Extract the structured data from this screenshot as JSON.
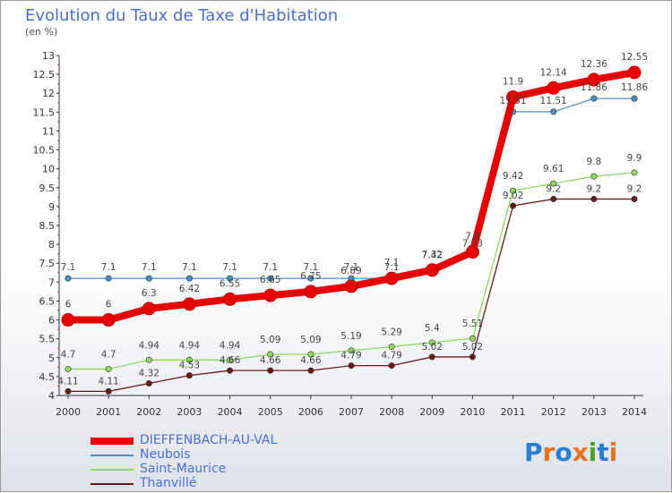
{
  "chart_data": {
    "type": "line",
    "title": "Evolution du Taux de Taxe d'Habitation",
    "unit": "(en %)",
    "x": [
      "2000",
      "2001",
      "2002",
      "2003",
      "2004",
      "2005",
      "2006",
      "2007",
      "2008",
      "2009",
      "2010",
      "2011",
      "2012",
      "2013",
      "2014"
    ],
    "ylim": [
      4,
      13
    ],
    "yticks": [
      "4",
      "4.5",
      "5",
      "5.5",
      "6",
      "6.5",
      "7",
      "7.5",
      "8",
      "8.5",
      "9",
      "9.5",
      "10",
      "10.5",
      "11",
      "11.5",
      "12",
      "12.5",
      "13"
    ],
    "grid": false,
    "legend_position": "bottom-left",
    "series": [
      {
        "name": "DIEFFENBACH-AU-VAL",
        "color": "#e80000",
        "values": [
          6,
          6,
          6.3,
          6.42,
          6.55,
          6.65,
          6.75,
          6.89,
          7.1,
          7.32,
          7.8,
          11.9,
          12.14,
          12.36,
          12.55
        ],
        "labels": [
          "6",
          "6",
          "6.3",
          "6.42",
          "6.55",
          "6.65",
          "6.75",
          "6.89",
          "7.1",
          "7.32",
          "7.8",
          "11.9",
          "12.14",
          "12.36",
          "12.55"
        ]
      },
      {
        "name": "Neubois",
        "color": "#4a90c8",
        "values": [
          7.1,
          7.1,
          7.1,
          7.1,
          7.1,
          7.1,
          7.1,
          7.1,
          7.1,
          7.42,
          7.73,
          11.51,
          11.51,
          11.86,
          11.86
        ],
        "labels": [
          "7.1",
          "7.1",
          "7.1",
          "7.1",
          "7.1",
          "7.1",
          "7.1",
          "7.1",
          "7.1",
          "7.42",
          "7.73",
          "11.51",
          "11.51",
          "11.86",
          "11.86"
        ]
      },
      {
        "name": "Saint-Maurice",
        "color": "#90d860",
        "values": [
          4.7,
          4.7,
          4.94,
          4.94,
          4.94,
          5.09,
          5.09,
          5.19,
          5.29,
          5.4,
          5.51,
          9.42,
          9.61,
          9.8,
          9.9
        ],
        "labels": [
          "4.7",
          "4.7",
          "4.94",
          "4.94",
          "4.94",
          "5.09",
          "5.09",
          "5.19",
          "5.29",
          "5.4",
          "5.51",
          "9.42",
          "9.61",
          "9.8",
          "9.9"
        ]
      },
      {
        "name": "Thanvillé",
        "color": "#6b1a1a",
        "values": [
          4.11,
          4.11,
          4.32,
          4.53,
          4.66,
          4.66,
          4.66,
          4.79,
          4.79,
          5.02,
          5.02,
          9.02,
          9.2,
          9.2,
          9.2
        ],
        "labels": [
          "4.11",
          "4.11",
          "4.32",
          "4.53",
          "4.66",
          "4.66",
          "4.66",
          "4.79",
          "4.79",
          "5.02",
          "5.02",
          "9.02",
          "9.2",
          "9.2",
          "9.2"
        ]
      }
    ]
  },
  "logo": {
    "letters": [
      "P",
      "r",
      "o",
      "x",
      "i",
      "t",
      "i"
    ],
    "colors": [
      "#2a7fd4",
      "#e8731c",
      "#2a7fd4",
      "#e8731c",
      "#4aa02c",
      "#2a7fd4",
      "#e8731c"
    ]
  }
}
